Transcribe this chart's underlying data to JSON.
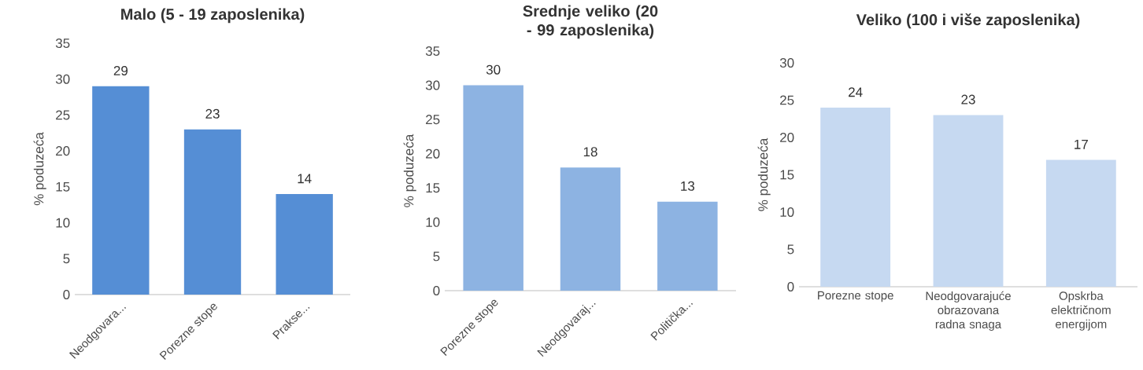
{
  "chart_data": [
    {
      "type": "bar",
      "title": "Malo (5 - 19 zaposlenika)",
      "ylabel": "% poduzeća",
      "categories": [
        "Neodgovara...",
        "Porezne stope",
        "Prakse..."
      ],
      "values": [
        29,
        23,
        14
      ],
      "color": "#558ed5",
      "ylim": [
        0,
        35
      ],
      "yticks": [
        0,
        5,
        10,
        15,
        20,
        25,
        30,
        35
      ],
      "data_labels": true
    },
    {
      "type": "bar",
      "title": "Srednje veliko (20 - 99 zaposlenika)",
      "ylabel": "% poduzeća",
      "categories": [
        "Porezne stope",
        "Neodgovaraj...",
        "Politička..."
      ],
      "values": [
        30,
        18,
        13
      ],
      "color": "#8db3e2",
      "ylim": [
        0,
        35
      ],
      "yticks": [
        0,
        5,
        10,
        15,
        20,
        25,
        30,
        35
      ],
      "data_labels": true
    },
    {
      "type": "bar",
      "title": "Veliko (100 i više zaposlenika)",
      "ylabel": "% poduzeća",
      "categories": [
        "Porezne stope",
        "Neodgovarajuće obrazovana radna snaga",
        "Opskrba električnom energijom"
      ],
      "values": [
        24,
        23,
        17
      ],
      "color": "#c6d9f1",
      "ylim": [
        0,
        30
      ],
      "yticks": [
        0,
        5,
        10,
        15,
        20,
        25,
        30
      ],
      "data_labels": true
    }
  ]
}
